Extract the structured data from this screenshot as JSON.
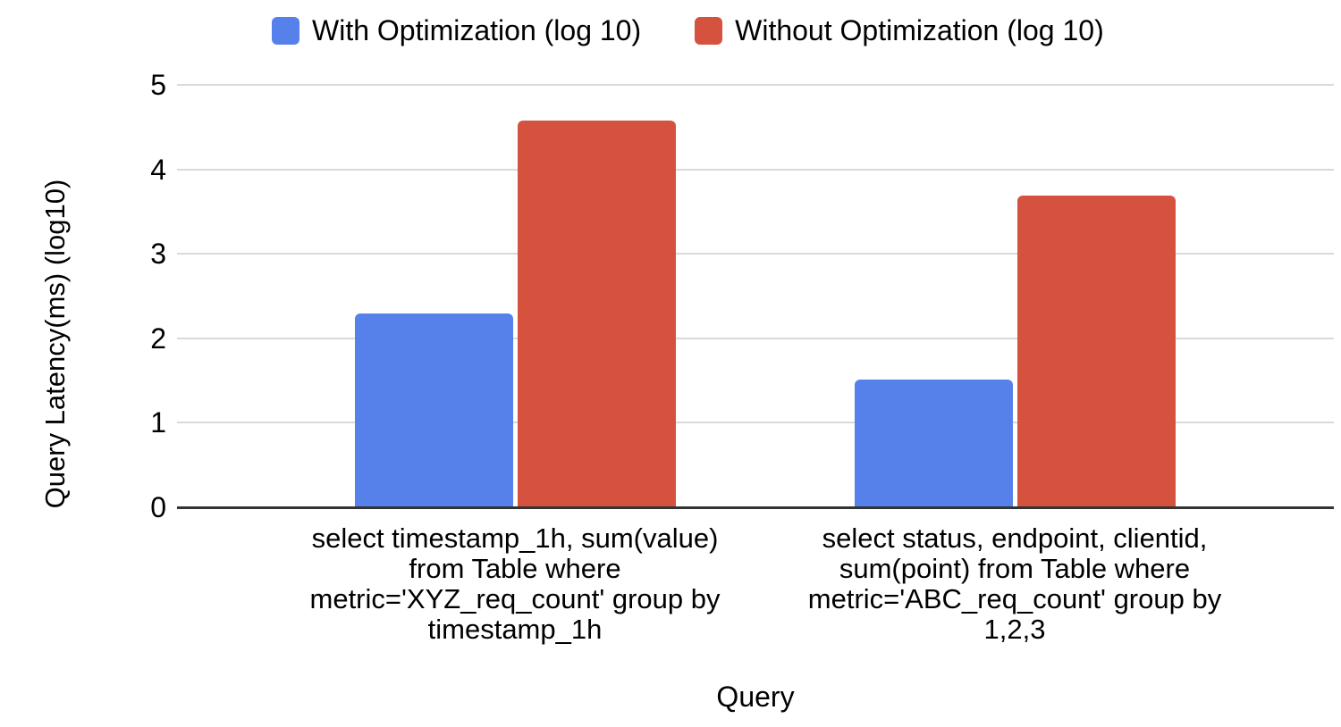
{
  "chart_data": {
    "type": "bar",
    "title": "",
    "xlabel": "Query",
    "ylabel": "Query Latency(ms) (log10)",
    "ylim": [
      0,
      5
    ],
    "yticks": [
      0,
      1,
      2,
      3,
      4,
      5
    ],
    "grid": true,
    "legend_position": "top",
    "categories": [
      "select timestamp_1h, sum(value) from Table where metric='XYZ_req_count' group by timestamp_1h",
      "select status, endpoint, clientid, sum(point) from Table where metric='ABC_req_count' group by 1,2,3"
    ],
    "series": [
      {
        "name": "With Optimization (log 10)",
        "color": "#5781EA",
        "values": [
          2.29,
          1.51
        ]
      },
      {
        "name": "Without Optimization (log 10)",
        "color": "#D5523F",
        "values": [
          4.58,
          3.69
        ]
      }
    ]
  },
  "colors": {
    "background": "#FFFFFF",
    "gridline": "#D9D9D9",
    "axis_line": "#333333",
    "text": "#000000"
  }
}
